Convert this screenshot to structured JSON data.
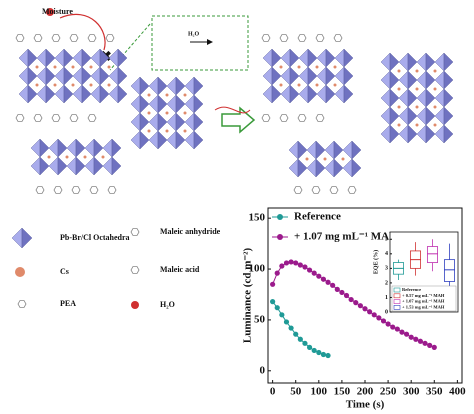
{
  "schematic": {
    "moisture": "Moisture",
    "reaction": "H₂O"
  },
  "legend": [
    "Pb-Br/Cl Octahedra",
    "Maleic anhydride",
    "Cs",
    "Maleic acid",
    "PEA",
    "H₂O"
  ],
  "chart_data": [
    {
      "type": "line",
      "xlabel": "Time (s)",
      "ylabel": "Luminance (cd m⁻²)",
      "xlim": [
        -10,
        410
      ],
      "xticks": [
        0,
        50,
        100,
        150,
        200,
        250,
        300,
        350,
        400
      ],
      "ylim": [
        -12,
        160
      ],
      "yticks": [
        0,
        50,
        100,
        150
      ],
      "legend": "upper left",
      "series": [
        {
          "name": "Reference",
          "color": "#1f9a96",
          "x": [
            0,
            10,
            20,
            30,
            40,
            50,
            60,
            70,
            80,
            90,
            100,
            110,
            120
          ],
          "values": [
            68,
            62,
            55,
            48,
            42,
            36,
            31,
            27,
            23,
            20,
            18,
            16,
            15
          ]
        },
        {
          "name": "+ 1.07 mg mL⁻¹ MAH",
          "color": "#9b1a8c",
          "x": [
            0,
            10,
            20,
            30,
            40,
            50,
            60,
            70,
            80,
            90,
            100,
            110,
            120,
            130,
            140,
            150,
            160,
            170,
            180,
            190,
            200,
            210,
            220,
            230,
            240,
            250,
            260,
            270,
            280,
            290,
            300,
            310,
            320,
            330,
            340,
            350
          ],
          "values": [
            85,
            96,
            103,
            106,
            107,
            106,
            104,
            102,
            99,
            96,
            93,
            90,
            87,
            84,
            80,
            77,
            74,
            70,
            67,
            64,
            61,
            58,
            55,
            52,
            49,
            46,
            43,
            41,
            38,
            36,
            33,
            31,
            29,
            27,
            25,
            23
          ]
        }
      ]
    },
    {
      "type": "box",
      "ylabel": "EQE (%)",
      "ylim": [
        0,
        5.5
      ],
      "yticks": [
        0,
        1,
        2,
        3,
        4,
        5
      ],
      "series": [
        {
          "name": "Reference",
          "color": "#1f9a96",
          "min": 2.2,
          "q1": 2.6,
          "median": 3.0,
          "q3": 3.4,
          "max": 3.6
        },
        {
          "name": "+ 0.57 mg mL⁻¹ MAH",
          "color": "#d03030",
          "min": 2.5,
          "q1": 3.0,
          "median": 3.6,
          "q3": 4.2,
          "max": 4.8
        },
        {
          "name": "+ 1.07 mg mL⁻¹ MAH",
          "color": "#c030b0",
          "min": 2.8,
          "q1": 3.4,
          "median": 4.0,
          "q3": 4.5,
          "max": 5.0
        },
        {
          "name": "+ 1.53 mg mL⁻¹ MAH",
          "color": "#3040c0",
          "min": 1.6,
          "q1": 2.1,
          "median": 2.9,
          "q3": 3.6,
          "max": 4.7
        }
      ]
    }
  ]
}
